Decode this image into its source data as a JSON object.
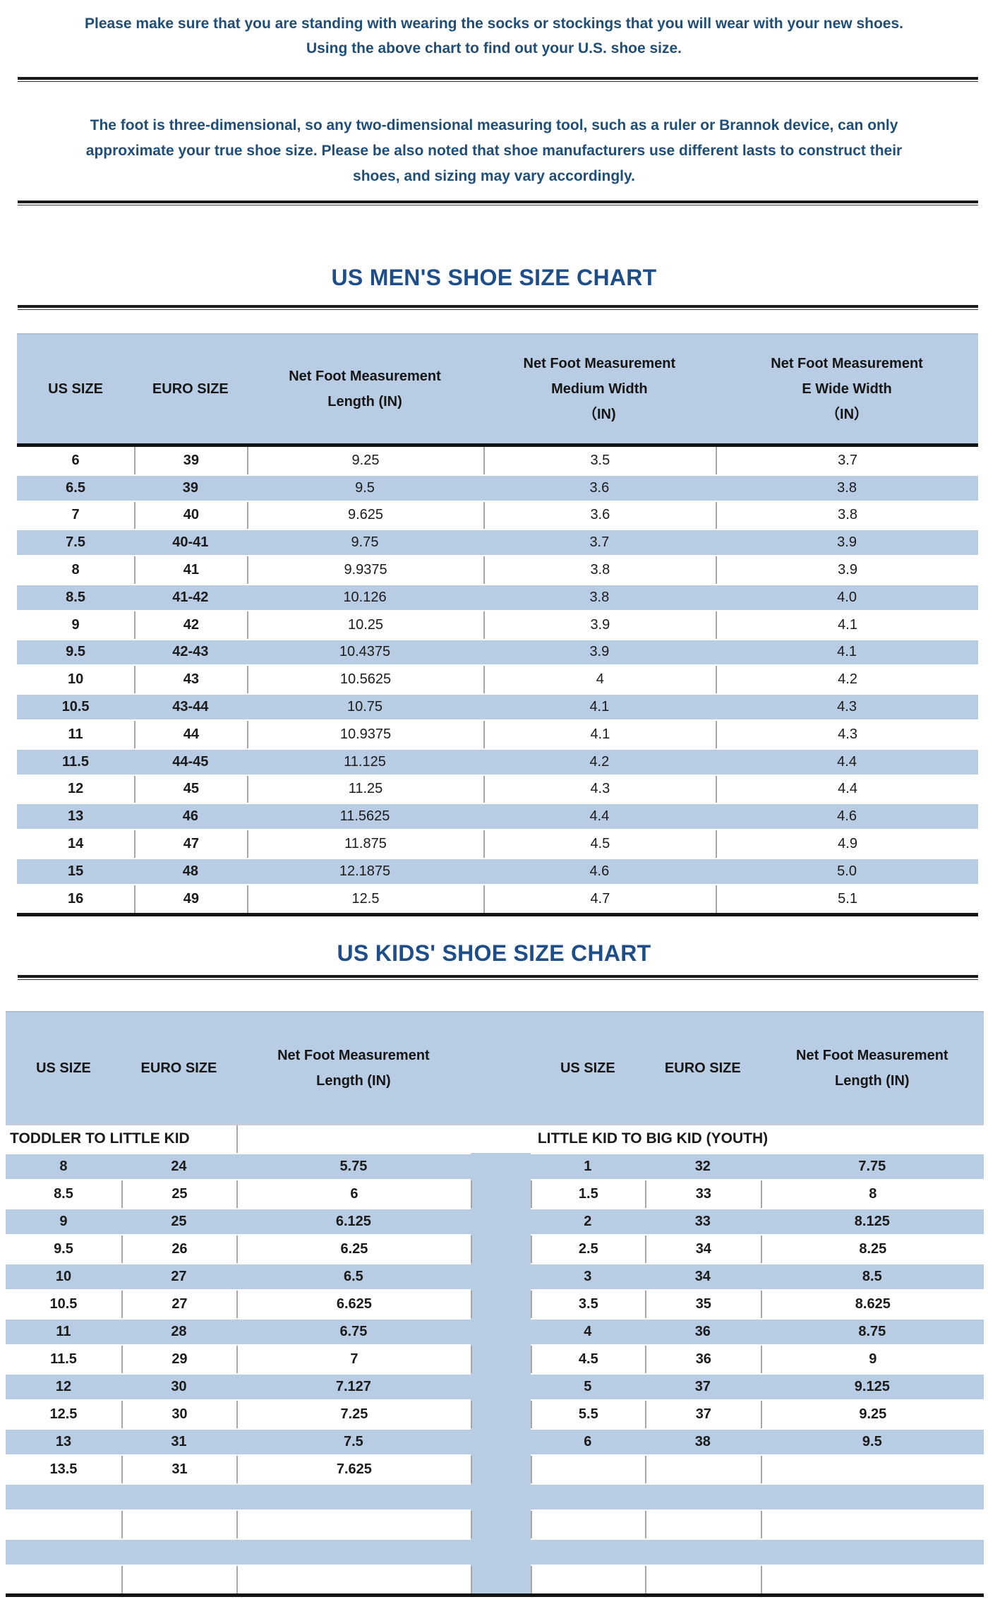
{
  "notes": {
    "line1": "Please make sure that you are standing with wearing the socks or stockings that you will wear with your new shoes.",
    "line2": "Using the above chart to find out your U.S. shoe size.",
    "para_line1": "The foot is three-dimensional, so any two-dimensional measuring tool, such as a ruler or Brannok device, can only",
    "para_line2": "approximate your true shoe size. Please be also noted that shoe manufacturers use different lasts to construct their",
    "para_line3": "shoes, and sizing may vary accordingly."
  },
  "mens_chart": {
    "title": "US MEN'S SHOE SIZE CHART",
    "columns": [
      {
        "l1": "US SIZE"
      },
      {
        "l1": "EURO SIZE"
      },
      {
        "l1": "Net Foot Measurement",
        "l2": "Length (IN)"
      },
      {
        "l1": "Net Foot Measurement",
        "l2": "Medium Width",
        "l3": "（IN)"
      },
      {
        "l1": "Net Foot Measurement",
        "l2": "E Wide Width",
        "l3": "（IN）"
      }
    ],
    "rows": [
      [
        "6",
        "39",
        "9.25",
        "3.5",
        "3.7"
      ],
      [
        "6.5",
        "39",
        "9.5",
        "3.6",
        "3.8"
      ],
      [
        "7",
        "40",
        "9.625",
        "3.6",
        "3.8"
      ],
      [
        "7.5",
        "40-41",
        "9.75",
        "3.7",
        "3.9"
      ],
      [
        "8",
        "41",
        "9.9375",
        "3.8",
        "3.9"
      ],
      [
        "8.5",
        "41-42",
        "10.126",
        "3.8",
        "4.0"
      ],
      [
        "9",
        "42",
        "10.25",
        "3.9",
        "4.1"
      ],
      [
        "9.5",
        "42-43",
        "10.4375",
        "3.9",
        "4.1"
      ],
      [
        "10",
        "43",
        "10.5625",
        "4",
        "4.2"
      ],
      [
        "10.5",
        "43-44",
        "10.75",
        "4.1",
        "4.3"
      ],
      [
        "11",
        "44",
        "10.9375",
        "4.1",
        "4.3"
      ],
      [
        "11.5",
        "44-45",
        "11.125",
        "4.2",
        "4.4"
      ],
      [
        "12",
        "45",
        "11.25",
        "4.3",
        "4.4"
      ],
      [
        "13",
        "46",
        "11.5625",
        "4.4",
        "4.6"
      ],
      [
        "14",
        "47",
        "11.875",
        "4.5",
        "4.9"
      ],
      [
        "15",
        "48",
        "12.1875",
        "4.6",
        "5.0"
      ],
      [
        "16",
        "49",
        "12.5",
        "4.7",
        "5.1"
      ]
    ]
  },
  "kids_chart": {
    "title": "US KIDS' SHOE SIZE CHART",
    "left": {
      "section_label": "TODDLER TO LITTLE KID",
      "columns": [
        {
          "l1": "US SIZE"
        },
        {
          "l1": "EURO SIZE"
        },
        {
          "l1": "Net Foot Measurement",
          "l2": "Length (IN)"
        }
      ],
      "rows": [
        [
          "8",
          "24",
          "5.75"
        ],
        [
          "8.5",
          "25",
          "6"
        ],
        [
          "9",
          "25",
          "6.125"
        ],
        [
          "9.5",
          "26",
          "6.25"
        ],
        [
          "10",
          "27",
          "6.5"
        ],
        [
          "10.5",
          "27",
          "6.625"
        ],
        [
          "11",
          "28",
          "6.75"
        ],
        [
          "11.5",
          "29",
          "7"
        ],
        [
          "12",
          "30",
          "7.127"
        ],
        [
          "12.5",
          "30",
          "7.25"
        ],
        [
          "13",
          "31",
          "7.5"
        ],
        [
          "13.5",
          "31",
          "7.625"
        ]
      ]
    },
    "right": {
      "section_label": "LITTLE KID TO BIG KID (YOUTH)",
      "columns": [
        {
          "l1": "US SIZE"
        },
        {
          "l1": "EURO SIZE"
        },
        {
          "l1": "Net Foot Measurement",
          "l2": "Length (IN)"
        }
      ],
      "rows": [
        [
          "1",
          "32",
          "7.75"
        ],
        [
          "1.5",
          "33",
          "8"
        ],
        [
          "2",
          "33",
          "8.125"
        ],
        [
          "2.5",
          "34",
          "8.25"
        ],
        [
          "3",
          "34",
          "8.5"
        ],
        [
          "3.5",
          "35",
          "8.625"
        ],
        [
          "4",
          "36",
          "8.75"
        ],
        [
          "4.5",
          "36",
          "9"
        ],
        [
          "5",
          "37",
          "9.125"
        ],
        [
          "5.5",
          "37",
          "9.25"
        ],
        [
          "6",
          "38",
          "9.5"
        ]
      ]
    },
    "filler_rows": [
      "blue",
      "white",
      "blue",
      "white"
    ]
  },
  "colors": {
    "stripe_blue": "#b8cce4",
    "note_navy": "#1f4e79",
    "title_blue": "#1d4e8a",
    "cell_text": "#1b1b1b",
    "cell_border_gray": "#a6a6a6",
    "rule_black": "#141414"
  }
}
